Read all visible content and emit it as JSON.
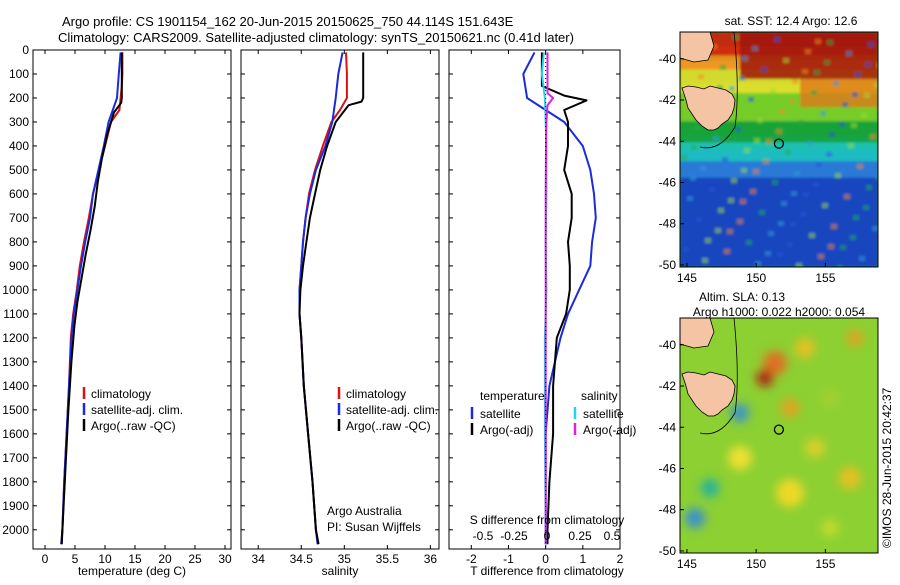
{
  "figure": {
    "title_line1": "Argo profile: CS 1901154_162 20-Jun-2015 20150625_750 44.114S 151.643E",
    "title_line2": "Climatology: CARS2009. Satellite-adjusted climatology: synTS_20150621.nc (0.41d later)",
    "credit": "©IMOS 28-Jun-2015 20:42:37"
  },
  "colors": {
    "climatology": "#dd1111",
    "satellite": "#1a2bdd",
    "argo": "#000000",
    "sat_salinity": "#22d4ee",
    "argo_salinity": "#dd22dd"
  },
  "chart_data": [
    {
      "type": "line",
      "id": "temperature",
      "xlabel": "temperature (deg C)",
      "xlim": [
        -2,
        31
      ],
      "ylim": [
        2080,
        0
      ],
      "xticks": [
        "0",
        "5",
        "10",
        "15",
        "20",
        "25",
        "30"
      ],
      "xtick_values": [
        0,
        5,
        10,
        15,
        20,
        25,
        30
      ],
      "yticks": [
        "0",
        "100",
        "200",
        "300",
        "400",
        "500",
        "600",
        "700",
        "800",
        "900",
        "1000",
        "1100",
        "1200",
        "1300",
        "1400",
        "1500",
        "1600",
        "1700",
        "1800",
        "1900",
        "2000"
      ],
      "ytick_values": [
        0,
        100,
        200,
        300,
        400,
        500,
        600,
        700,
        800,
        900,
        1000,
        1100,
        1200,
        1300,
        1400,
        1500,
        1600,
        1700,
        1800,
        1900,
        2000
      ],
      "legend": {
        "position": "middle-left",
        "entries": [
          "climatology",
          "satellite-adj. clim.",
          "Argo(..raw -QC)"
        ]
      },
      "series": [
        {
          "name": "climatology",
          "color_key": "climatology",
          "points": [
            [
              12.9,
              10
            ],
            [
              12.9,
              100
            ],
            [
              12.8,
              150
            ],
            [
              12.4,
              250
            ],
            [
              11,
              300
            ],
            [
              10,
              400
            ],
            [
              9,
              500
            ],
            [
              8,
              600
            ],
            [
              7.3,
              700
            ],
            [
              6.5,
              800
            ],
            [
              5.8,
              900
            ],
            [
              5.3,
              1000
            ],
            [
              4.7,
              1100
            ],
            [
              4.3,
              1200
            ],
            [
              4,
              1400
            ],
            [
              3.6,
              1600
            ],
            [
              3.2,
              1800
            ],
            [
              2.9,
              2000
            ],
            [
              2.7,
              2060
            ]
          ]
        },
        {
          "name": "satellite-adj. clim.",
          "color_key": "satellite",
          "points": [
            [
              12.6,
              10
            ],
            [
              12.3,
              100
            ],
            [
              12,
              200
            ],
            [
              11.3,
              250
            ],
            [
              10.6,
              300
            ],
            [
              9.8,
              400
            ],
            [
              8.9,
              500
            ],
            [
              8,
              600
            ],
            [
              7.5,
              700
            ],
            [
              6.7,
              800
            ],
            [
              6,
              900
            ],
            [
              5.4,
              1000
            ],
            [
              4.8,
              1100
            ],
            [
              4.4,
              1200
            ],
            [
              4,
              1400
            ],
            [
              3.6,
              1600
            ],
            [
              3.2,
              1800
            ],
            [
              2.9,
              2000
            ],
            [
              2.7,
              2060
            ]
          ]
        },
        {
          "name": "Argo(..raw -QC)",
          "color_key": "argo",
          "points": [
            [
              12.8,
              10
            ],
            [
              12.8,
              100
            ],
            [
              12.8,
              200
            ],
            [
              12.7,
              220
            ],
            [
              11.5,
              260
            ],
            [
              10.4,
              350
            ],
            [
              9.5,
              450
            ],
            [
              8.8,
              550
            ],
            [
              8.3,
              650
            ],
            [
              7.6,
              750
            ],
            [
              6.8,
              850
            ],
            [
              6.1,
              950
            ],
            [
              5.4,
              1050
            ],
            [
              4.9,
              1150
            ],
            [
              4.4,
              1300
            ],
            [
              3.9,
              1500
            ],
            [
              3.5,
              1700
            ],
            [
              3.1,
              1900
            ],
            [
              2.9,
              2000
            ],
            [
              2.8,
              2060
            ]
          ]
        }
      ]
    },
    {
      "type": "line",
      "id": "salinity",
      "xlabel": "salinity",
      "xlim": [
        33.8,
        36.1
      ],
      "ylim": [
        2080,
        0
      ],
      "xticks": [
        "34",
        "34.5",
        "35",
        "35.5",
        "36"
      ],
      "xtick_values": [
        34,
        34.5,
        35,
        35.5,
        36
      ],
      "legend": {
        "position": "middle-right",
        "entries": [
          "climatology",
          "satellite-adj. clim.",
          "Argo(..raw -QC)"
        ]
      },
      "annotations": [
        "Argo Australia",
        "PI: Susan Wijffels"
      ],
      "series": [
        {
          "name": "climatology",
          "color_key": "climatology",
          "points": [
            [
              35.02,
              10
            ],
            [
              35.03,
              100
            ],
            [
              35.03,
              200
            ],
            [
              34.95,
              250
            ],
            [
              34.85,
              300
            ],
            [
              34.75,
              400
            ],
            [
              34.66,
              500
            ],
            [
              34.59,
              600
            ],
            [
              34.55,
              700
            ],
            [
              34.52,
              800
            ],
            [
              34.5,
              900
            ],
            [
              34.48,
              1000
            ],
            [
              34.48,
              1100
            ],
            [
              34.5,
              1200
            ],
            [
              34.53,
              1400
            ],
            [
              34.58,
              1600
            ],
            [
              34.63,
              1800
            ],
            [
              34.67,
              2000
            ],
            [
              34.7,
              2060
            ]
          ]
        },
        {
          "name": "satellite-adj. clim.",
          "color_key": "satellite",
          "points": [
            [
              34.98,
              10
            ],
            [
              34.93,
              100
            ],
            [
              34.9,
              200
            ],
            [
              34.86,
              300
            ],
            [
              34.78,
              400
            ],
            [
              34.67,
              500
            ],
            [
              34.6,
              600
            ],
            [
              34.55,
              700
            ],
            [
              34.52,
              800
            ],
            [
              34.5,
              900
            ],
            [
              34.48,
              1000
            ],
            [
              34.48,
              1100
            ],
            [
              34.5,
              1200
            ],
            [
              34.53,
              1400
            ],
            [
              34.58,
              1600
            ],
            [
              34.63,
              1800
            ],
            [
              34.67,
              2000
            ],
            [
              34.69,
              2060
            ]
          ]
        },
        {
          "name": "Argo(..raw -QC)",
          "color_key": "argo",
          "points": [
            [
              35.22,
              10
            ],
            [
              35.22,
              100
            ],
            [
              35.22,
              200
            ],
            [
              35.2,
              215
            ],
            [
              35.05,
              230
            ],
            [
              34.9,
              300
            ],
            [
              34.8,
              400
            ],
            [
              34.72,
              500
            ],
            [
              34.66,
              600
            ],
            [
              34.6,
              700
            ],
            [
              34.56,
              800
            ],
            [
              34.52,
              900
            ],
            [
              34.49,
              1000
            ],
            [
              34.48,
              1100
            ],
            [
              34.5,
              1200
            ],
            [
              34.53,
              1400
            ],
            [
              34.58,
              1600
            ],
            [
              34.63,
              1800
            ],
            [
              34.67,
              2000
            ],
            [
              34.7,
              2060
            ]
          ]
        }
      ]
    },
    {
      "type": "line",
      "id": "differences",
      "xlabel": "T difference from climatology",
      "xlabel2": "S difference from climatology",
      "xlim": [
        -2.6,
        2
      ],
      "ylim": [
        2080,
        0
      ],
      "xticks": [
        "-2",
        "-1",
        "0",
        "1",
        "2"
      ],
      "xtick_values": [
        -2,
        -1,
        0,
        1,
        2
      ],
      "xticks2": [
        "-0.5",
        "-0.25",
        "0",
        "0.25",
        "0.5"
      ],
      "legend": {
        "position": "lower-middle",
        "headers": [
          "temperature",
          "salinity"
        ],
        "entries": [
          "satellite",
          "Argo(-adj)",
          "satellite",
          "Argo(-adj)"
        ]
      },
      "series": [
        {
          "name": "temperature satellite",
          "color_key": "satellite",
          "points": [
            [
              -0.3,
              10
            ],
            [
              -0.6,
              100
            ],
            [
              -0.5,
              200
            ],
            [
              0.5,
              300
            ],
            [
              1,
              400
            ],
            [
              1.2,
              500
            ],
            [
              1.3,
              600
            ],
            [
              1.35,
              700
            ],
            [
              1.25,
              800
            ],
            [
              1.2,
              900
            ],
            [
              0.9,
              1000
            ],
            [
              0.6,
              1100
            ],
            [
              0.4,
              1200
            ],
            [
              0.1,
              1400
            ],
            [
              0,
              1600
            ],
            [
              0,
              1800
            ],
            [
              0,
              2000
            ],
            [
              0,
              2060
            ]
          ]
        },
        {
          "name": "temperature Argo(-adj)",
          "color_key": "argo",
          "points": [
            [
              -0.1,
              10
            ],
            [
              -0.1,
              100
            ],
            [
              -0.1,
              150
            ],
            [
              0.5,
              190
            ],
            [
              1.1,
              210
            ],
            [
              0.5,
              250
            ],
            [
              0.6,
              300
            ],
            [
              0.6,
              400
            ],
            [
              0.5,
              500
            ],
            [
              0.7,
              600
            ],
            [
              0.7,
              700
            ],
            [
              0.6,
              800
            ],
            [
              0.65,
              900
            ],
            [
              0.65,
              1000
            ],
            [
              0.55,
              1100
            ],
            [
              0.3,
              1200
            ],
            [
              0.2,
              1400
            ],
            [
              0.2,
              1600
            ],
            [
              0.1,
              1800
            ],
            [
              0.05,
              2000
            ],
            [
              0.05,
              2060
            ]
          ]
        },
        {
          "name": "salinity satellite",
          "color_key": "sat_salinity",
          "points": [
            [
              -0.05,
              10
            ],
            [
              -0.1,
              100
            ],
            [
              -0.02,
              200
            ],
            [
              0.02,
              400
            ],
            [
              0.02,
              600
            ],
            [
              0,
              800
            ],
            [
              0.02,
              1000
            ],
            [
              0,
              1100
            ],
            [
              -0.02,
              1200
            ],
            [
              -0.02,
              1400
            ],
            [
              -0.02,
              1600
            ],
            [
              -0.01,
              1800
            ],
            [
              0,
              2000
            ],
            [
              0,
              2060
            ]
          ]
        },
        {
          "name": "salinity Argo(-adj)",
          "color_key": "argo_salinity",
          "points": [
            [
              0.05,
              10
            ],
            [
              0.05,
              100
            ],
            [
              0.05,
              180
            ],
            [
              0.2,
              200
            ],
            [
              0.05,
              230
            ],
            [
              0.02,
              300
            ],
            [
              0.01,
              400
            ],
            [
              0,
              600
            ],
            [
              0,
              800
            ],
            [
              0,
              1000
            ],
            [
              0,
              1200
            ],
            [
              0,
              1400
            ],
            [
              0,
              1600
            ],
            [
              0,
              1800
            ],
            [
              0,
              2000
            ],
            [
              0,
              2060
            ]
          ]
        }
      ]
    },
    {
      "type": "heatmap",
      "id": "sst_map",
      "title": "sat. SST: 12.4  Argo: 12.6",
      "xticks": [
        "145",
        "150",
        "155"
      ],
      "xtick_values": [
        145,
        150,
        155
      ],
      "yticks": [
        "-40",
        "-42",
        "-44",
        "-46",
        "-48",
        "-50"
      ],
      "ytick_values": [
        -40,
        -42,
        -44,
        -46,
        -48,
        -50
      ],
      "xlim": [
        144.5,
        158.8
      ],
      "ylim": [
        -38.7,
        -50.1
      ],
      "marker": {
        "lon": 151.643,
        "lat": -44.114
      }
    },
    {
      "type": "heatmap",
      "id": "sla_map",
      "title": "Altim. SLA: 0.13",
      "subtitle": "Argo h1000: 0.022 h2000: 0.054",
      "xticks": [
        "145",
        "150",
        "155"
      ],
      "xtick_values": [
        145,
        150,
        155
      ],
      "yticks": [
        "-40",
        "-42",
        "-44",
        "-46",
        "-48",
        "-50"
      ],
      "ytick_values": [
        -40,
        -42,
        -44,
        -46,
        -48,
        -50
      ],
      "xlim": [
        144.5,
        158.8
      ],
      "ylim": [
        -38.7,
        -50.1
      ],
      "marker": {
        "lon": 151.643,
        "lat": -44.114
      }
    }
  ]
}
